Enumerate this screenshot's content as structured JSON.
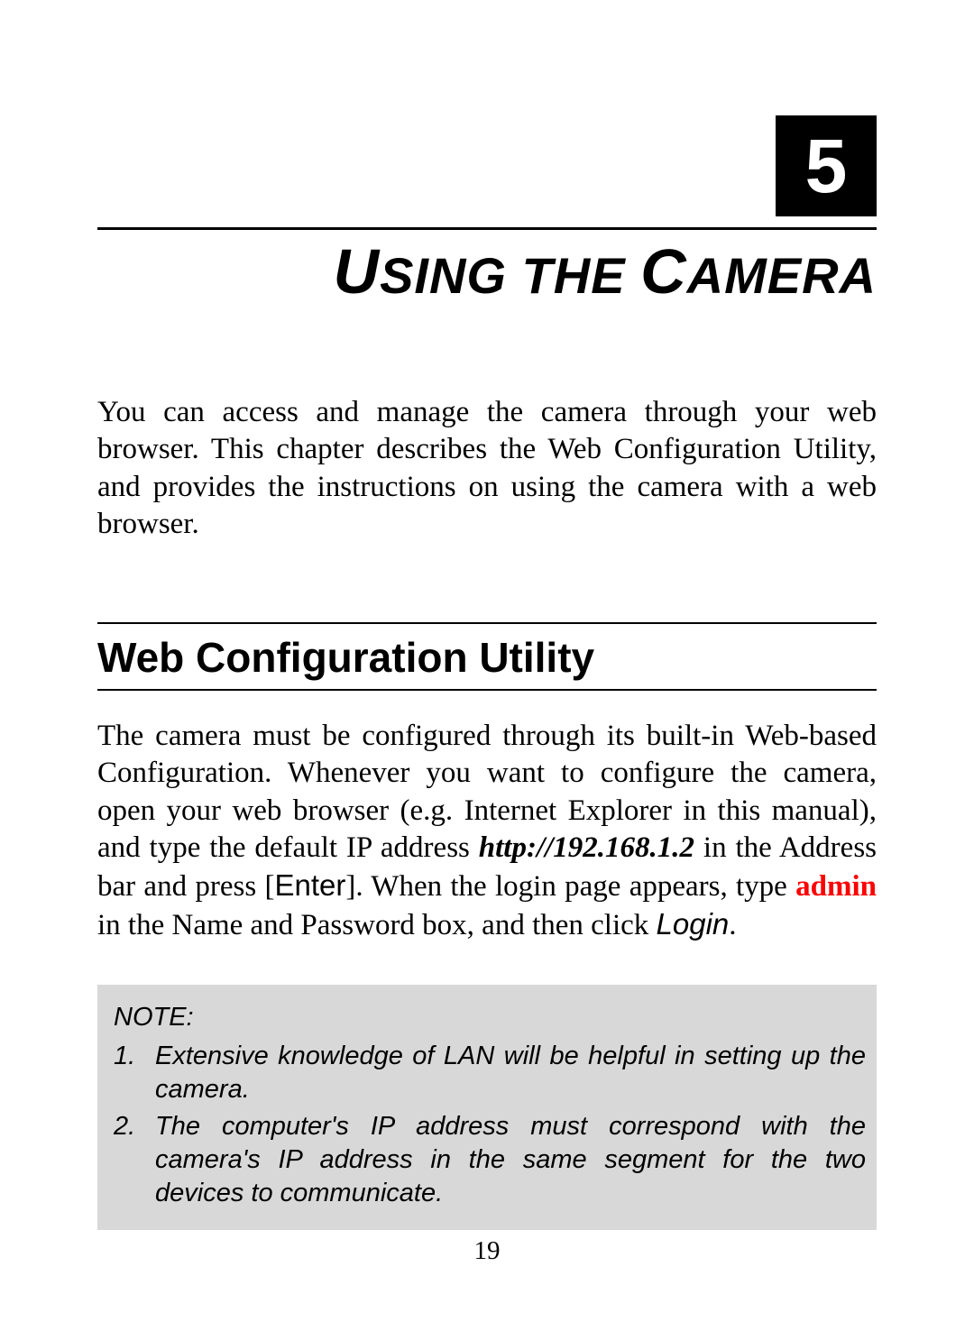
{
  "chapter": {
    "number": "5",
    "title_html": "<span class=\"cap\">U</span>SING THE <span class=\"cap\">C</span>AMERA"
  },
  "intro": "You can access and manage the camera through your web browser.  This chapter describes the Web Configuration Utility, and provides the instructions on using the camera with a web browser.",
  "section": {
    "heading": "Web Configuration Utility",
    "body_html": "The camera must be configured through its built-in Web-based Configuration.  Whenever you want to configure the camera, open your web browser (e.g. Internet Explorer in this manual), and type the default IP address <span class=\"ipaddr\">http://192.168.1.2</span> in the Address bar and press [<span class=\"sans\">Enter</span>].  When the login page appears, type <span class=\"admin\">admin</span> in the Name and Password box, and then click <span class=\"loginword\">Login</span>."
  },
  "note": {
    "label": "NOTE:",
    "items": [
      "Extensive knowledge of LAN will be helpful in setting up the camera.",
      "The computer's IP address must correspond with the camera's IP address in the same segment for the two devices to communicate."
    ]
  },
  "page_number": "19",
  "colors": {
    "page_bg": "#ffffff",
    "text": "#000000",
    "chapter_box_bg": "#000000",
    "chapter_box_fg": "#ffffff",
    "note_bg": "#d8d8d8",
    "admin_color": "#ff0000"
  },
  "typography": {
    "serif_family": "Times New Roman",
    "sans_family": "Arial",
    "chapter_number_pt": 84,
    "chapter_title_pt": 56,
    "chapter_title_cap_pt": 70,
    "body_pt": 33,
    "section_heading_pt": 46,
    "note_pt": 29,
    "page_number_pt": 29
  }
}
